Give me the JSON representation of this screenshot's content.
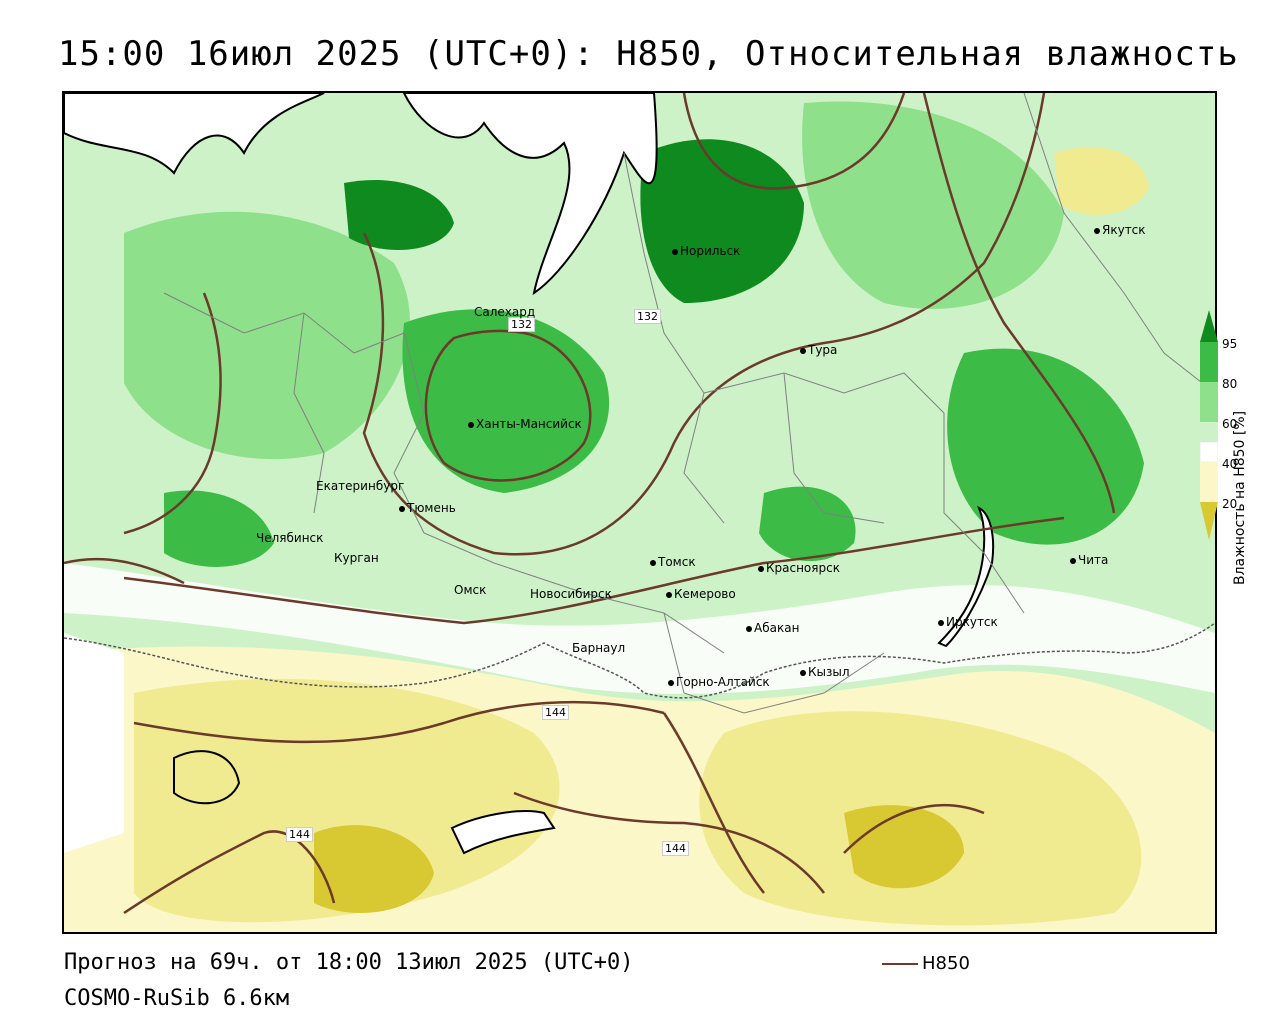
{
  "title": "15:00 16июл 2025 (UTC+0): H850, Относительная влажность",
  "forecast_line": "Прогноз на 69ч. от 18:00 13июл 2025 (UTC+0)",
  "model_line": "COSMO-RuSib 6.6км",
  "legend": {
    "line_label": "H850",
    "line_color": "#6b3a2a"
  },
  "colorbar": {
    "title": "Влажность на H850 [%]",
    "ticks": [
      "95",
      "80",
      "60",
      "40",
      "20"
    ],
    "colors": {
      "very_dry": "#d8c832",
      "dry": "#f0ea90",
      "light_dry": "#fbf7c8",
      "neutral": "#ffffff",
      "light_moist": "#cdf2c8",
      "moist": "#8fe08a",
      "wet": "#3cbc46",
      "saturated": "#0e8a1e"
    }
  },
  "contour_labels": [
    "132",
    "132",
    "144",
    "144",
    "144"
  ],
  "cities": [
    {
      "name": "Якутск"
    },
    {
      "name": "Норильск"
    },
    {
      "name": "Салехард"
    },
    {
      "name": "Тура"
    },
    {
      "name": "Ханты-Мансийск"
    },
    {
      "name": "Екатеринбург"
    },
    {
      "name": "Тюмень"
    },
    {
      "name": "Челябинск"
    },
    {
      "name": "Курган"
    },
    {
      "name": "Омск"
    },
    {
      "name": "Томск"
    },
    {
      "name": "Красноярск"
    },
    {
      "name": "Новосибирск"
    },
    {
      "name": "Кемерово"
    },
    {
      "name": "Абакан"
    },
    {
      "name": "Барнаул"
    },
    {
      "name": "Иркутск"
    },
    {
      "name": "Чита"
    },
    {
      "name": "Кызыл"
    },
    {
      "name": "Горно-Алтайск"
    }
  ]
}
